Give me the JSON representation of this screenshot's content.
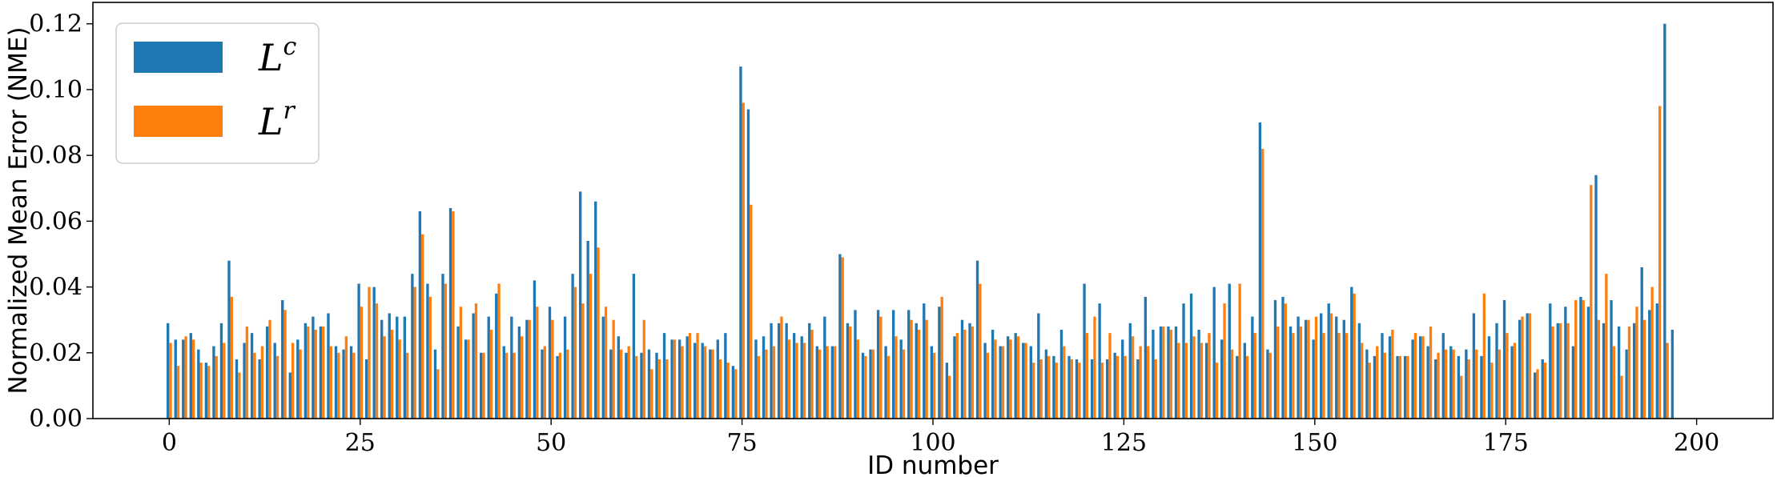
{
  "chart_data": {
    "type": "bar",
    "xlabel": "ID number",
    "ylabel": "Normalized Mean Error (NME)",
    "xlim": [
      -10,
      210
    ],
    "ylim": [
      0,
      0.1265
    ],
    "xticks": [
      0,
      25,
      50,
      75,
      100,
      125,
      150,
      175,
      200
    ],
    "yticks": [
      0.0,
      0.02,
      0.04,
      0.06,
      0.08,
      0.1,
      0.12
    ],
    "legend_position": "upper-left",
    "grid": false,
    "series": [
      {
        "name": "L^c",
        "legend_base": "L",
        "legend_sup": "c",
        "color": "#1f77b4",
        "values": [
          0.029,
          0.024,
          0.024,
          0.026,
          0.021,
          0.017,
          0.022,
          0.029,
          0.048,
          0.018,
          0.023,
          0.026,
          0.018,
          0.028,
          0.023,
          0.036,
          0.014,
          0.024,
          0.029,
          0.031,
          0.028,
          0.032,
          0.022,
          0.021,
          0.022,
          0.041,
          0.018,
          0.04,
          0.03,
          0.032,
          0.031,
          0.031,
          0.044,
          0.063,
          0.041,
          0.021,
          0.044,
          0.064,
          0.028,
          0.024,
          0.032,
          0.02,
          0.031,
          0.038,
          0.022,
          0.031,
          0.028,
          0.03,
          0.042,
          0.021,
          0.034,
          0.019,
          0.031,
          0.044,
          0.069,
          0.054,
          0.066,
          0.031,
          0.021,
          0.025,
          0.02,
          0.044,
          0.02,
          0.021,
          0.02,
          0.026,
          0.024,
          0.024,
          0.025,
          0.023,
          0.023,
          0.021,
          0.024,
          0.026,
          0.016,
          0.107,
          0.094,
          0.024,
          0.025,
          0.029,
          0.029,
          0.029,
          0.026,
          0.025,
          0.029,
          0.022,
          0.031,
          0.022,
          0.05,
          0.029,
          0.033,
          0.02,
          0.021,
          0.033,
          0.022,
          0.033,
          0.024,
          0.033,
          0.029,
          0.035,
          0.022,
          0.034,
          0.017,
          0.025,
          0.03,
          0.029,
          0.048,
          0.023,
          0.027,
          0.022,
          0.025,
          0.026,
          0.023,
          0.022,
          0.032,
          0.021,
          0.019,
          0.027,
          0.019,
          0.018,
          0.041,
          0.018,
          0.035,
          0.018,
          0.02,
          0.024,
          0.029,
          0.018,
          0.037,
          0.027,
          0.028,
          0.028,
          0.028,
          0.035,
          0.038,
          0.027,
          0.023,
          0.04,
          0.024,
          0.041,
          0.019,
          0.023,
          0.031,
          0.09,
          0.021,
          0.036,
          0.037,
          0.028,
          0.031,
          0.03,
          0.024,
          0.032,
          0.035,
          0.031,
          0.03,
          0.04,
          0.029,
          0.021,
          0.019,
          0.026,
          0.025,
          0.019,
          0.019,
          0.024,
          0.025,
          0.022,
          0.018,
          0.026,
          0.022,
          0.019,
          0.021,
          0.032,
          0.019,
          0.025,
          0.029,
          0.036,
          0.022,
          0.03,
          0.032,
          0.014,
          0.018,
          0.035,
          0.029,
          0.034,
          0.022,
          0.037,
          0.034,
          0.074,
          0.029,
          0.036,
          0.028,
          0.021,
          0.029,
          0.046,
          0.033,
          0.035,
          0.12,
          0.027
        ]
      },
      {
        "name": "L^r",
        "legend_base": "L",
        "legend_sup": "r",
        "color": "#ff7f0e",
        "values": [
          0.023,
          0.016,
          0.025,
          0.024,
          0.017,
          0.016,
          0.019,
          0.023,
          0.037,
          0.014,
          0.028,
          0.02,
          0.022,
          0.03,
          0.019,
          0.033,
          0.023,
          0.021,
          0.028,
          0.027,
          0.028,
          0.022,
          0.02,
          0.025,
          0.02,
          0.034,
          0.04,
          0.035,
          0.025,
          0.027,
          0.024,
          0.02,
          0.04,
          0.056,
          0.037,
          0.015,
          0.041,
          0.063,
          0.034,
          0.024,
          0.035,
          0.02,
          0.027,
          0.041,
          0.02,
          0.02,
          0.025,
          0.03,
          0.034,
          0.022,
          0.03,
          0.02,
          0.021,
          0.04,
          0.035,
          0.044,
          0.052,
          0.034,
          0.03,
          0.021,
          0.022,
          0.019,
          0.03,
          0.015,
          0.018,
          0.018,
          0.024,
          0.022,
          0.026,
          0.026,
          0.022,
          0.021,
          0.018,
          0.017,
          0.015,
          0.096,
          0.065,
          0.019,
          0.021,
          0.022,
          0.031,
          0.024,
          0.023,
          0.023,
          0.027,
          0.021,
          0.022,
          0.022,
          0.049,
          0.028,
          0.024,
          0.019,
          0.021,
          0.031,
          0.019,
          0.025,
          0.021,
          0.03,
          0.027,
          0.03,
          0.02,
          0.037,
          0.013,
          0.026,
          0.027,
          0.028,
          0.041,
          0.02,
          0.024,
          0.022,
          0.024,
          0.025,
          0.023,
          0.017,
          0.018,
          0.019,
          0.017,
          0.022,
          0.018,
          0.017,
          0.026,
          0.031,
          0.017,
          0.026,
          0.019,
          0.019,
          0.025,
          0.022,
          0.022,
          0.018,
          0.028,
          0.027,
          0.023,
          0.023,
          0.025,
          0.023,
          0.026,
          0.017,
          0.035,
          0.021,
          0.041,
          0.019,
          0.026,
          0.082,
          0.02,
          0.028,
          0.035,
          0.026,
          0.028,
          0.03,
          0.031,
          0.026,
          0.032,
          0.026,
          0.026,
          0.038,
          0.023,
          0.017,
          0.022,
          0.02,
          0.027,
          0.019,
          0.019,
          0.026,
          0.025,
          0.028,
          0.02,
          0.021,
          0.021,
          0.013,
          0.018,
          0.021,
          0.038,
          0.017,
          0.021,
          0.026,
          0.023,
          0.031,
          0.032,
          0.015,
          0.017,
          0.028,
          0.029,
          0.029,
          0.036,
          0.036,
          0.071,
          0.03,
          0.044,
          0.022,
          0.013,
          0.028,
          0.034,
          0.03,
          0.04,
          0.095,
          0.023
        ]
      }
    ]
  }
}
